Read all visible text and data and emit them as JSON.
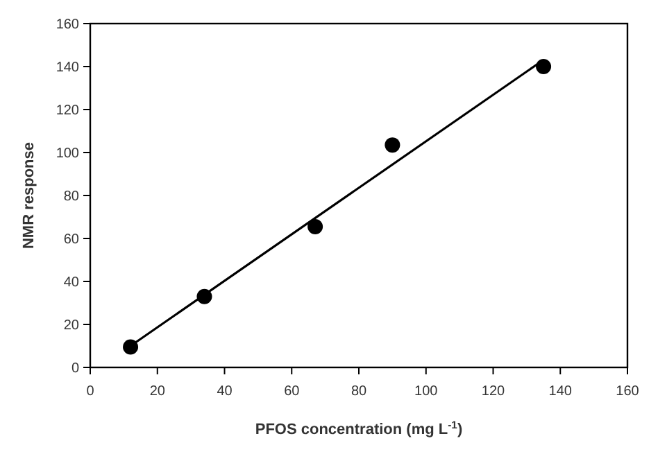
{
  "chart_data": {
    "type": "scatter",
    "xlabel": "PFOS concentration (mg L$^{-1}$)",
    "ylabel": "NMR response",
    "xlim": [
      0,
      160
    ],
    "ylim": [
      0,
      160
    ],
    "xticks": [
      0,
      20,
      40,
      60,
      80,
      100,
      120,
      140,
      160
    ],
    "yticks": [
      0,
      20,
      40,
      60,
      80,
      100,
      120,
      140,
      160
    ],
    "grid": false,
    "series": [
      {
        "color": "#000000",
        "marker": "circle",
        "x": [
          12,
          34,
          67,
          90,
          135
        ],
        "values": [
          9.5,
          33,
          65.5,
          103.5,
          140
        ]
      },
      {
        "type": "line",
        "color": "#000000",
        "x": [
          12,
          134
        ],
        "values": [
          10,
          142
        ],
        "line_style": "solid",
        "marker": "none"
      }
    ]
  }
}
